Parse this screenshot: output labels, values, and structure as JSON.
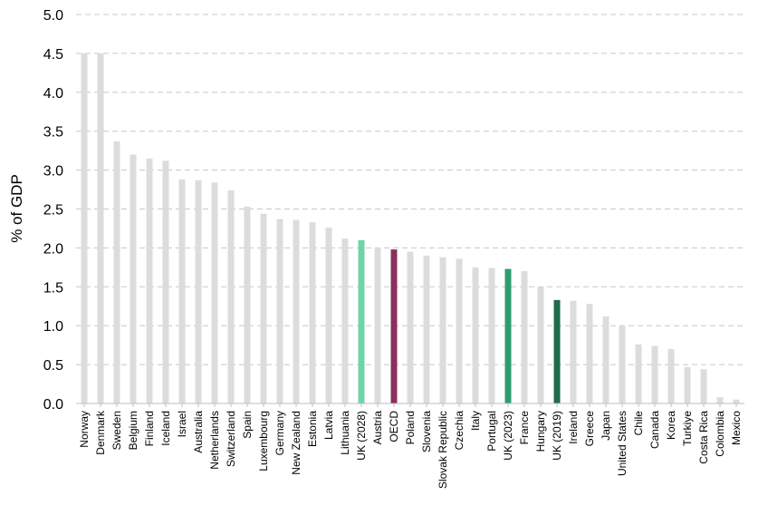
{
  "chart_data": {
    "type": "bar",
    "title": "",
    "xlabel": "",
    "ylabel": "% of GDP",
    "ylim": [
      0,
      5.0
    ],
    "yticks": [
      "0.0",
      "0.5",
      "1.0",
      "1.5",
      "2.0",
      "2.5",
      "3.0",
      "3.5",
      "4.0",
      "4.5",
      "5.0"
    ],
    "grid": "horizontal dashed",
    "legend": "none",
    "colors": {
      "default": "#dcdcdc",
      "UK (2028)": "#6fd3a8",
      "OECD": "#8b2f5f",
      "UK (2023)": "#2e9e6f",
      "UK (2019)": "#1e6b4a",
      "gridline": "#c8c8c8",
      "axis": "#bfbfbf"
    },
    "categories": [
      "Norway",
      "Denmark",
      "Sweden",
      "Belgium",
      "Finland",
      "Iceland",
      "Israel",
      "Australia",
      "Netherlands",
      "Switzerland",
      "Spain",
      "Luxembourg",
      "Germany",
      "New Zealand",
      "Estonia",
      "Latvia",
      "Lithuania",
      "UK (2028)",
      "Austria",
      "OECD",
      "Poland",
      "Slovenia",
      "Slovak Republic",
      "Czechia",
      "Italy",
      "Portugal",
      "UK (2023)",
      "France",
      "Hungary",
      "UK (2019)",
      "Ireland",
      "Greece",
      "Japan",
      "United States",
      "Chile",
      "Canada",
      "Korea",
      "Turkiye",
      "Costa Rica",
      "Colombia",
      "Mexico"
    ],
    "values": [
      4.5,
      4.5,
      3.37,
      3.2,
      3.15,
      3.12,
      2.88,
      2.87,
      2.84,
      2.74,
      2.53,
      2.44,
      2.37,
      2.36,
      2.33,
      2.26,
      2.12,
      2.1,
      2.0,
      1.98,
      1.95,
      1.9,
      1.88,
      1.86,
      1.75,
      1.74,
      1.73,
      1.7,
      1.5,
      1.33,
      1.32,
      1.28,
      1.12,
      0.99,
      0.76,
      0.74,
      0.7,
      0.47,
      0.44,
      0.08,
      0.05
    ]
  }
}
